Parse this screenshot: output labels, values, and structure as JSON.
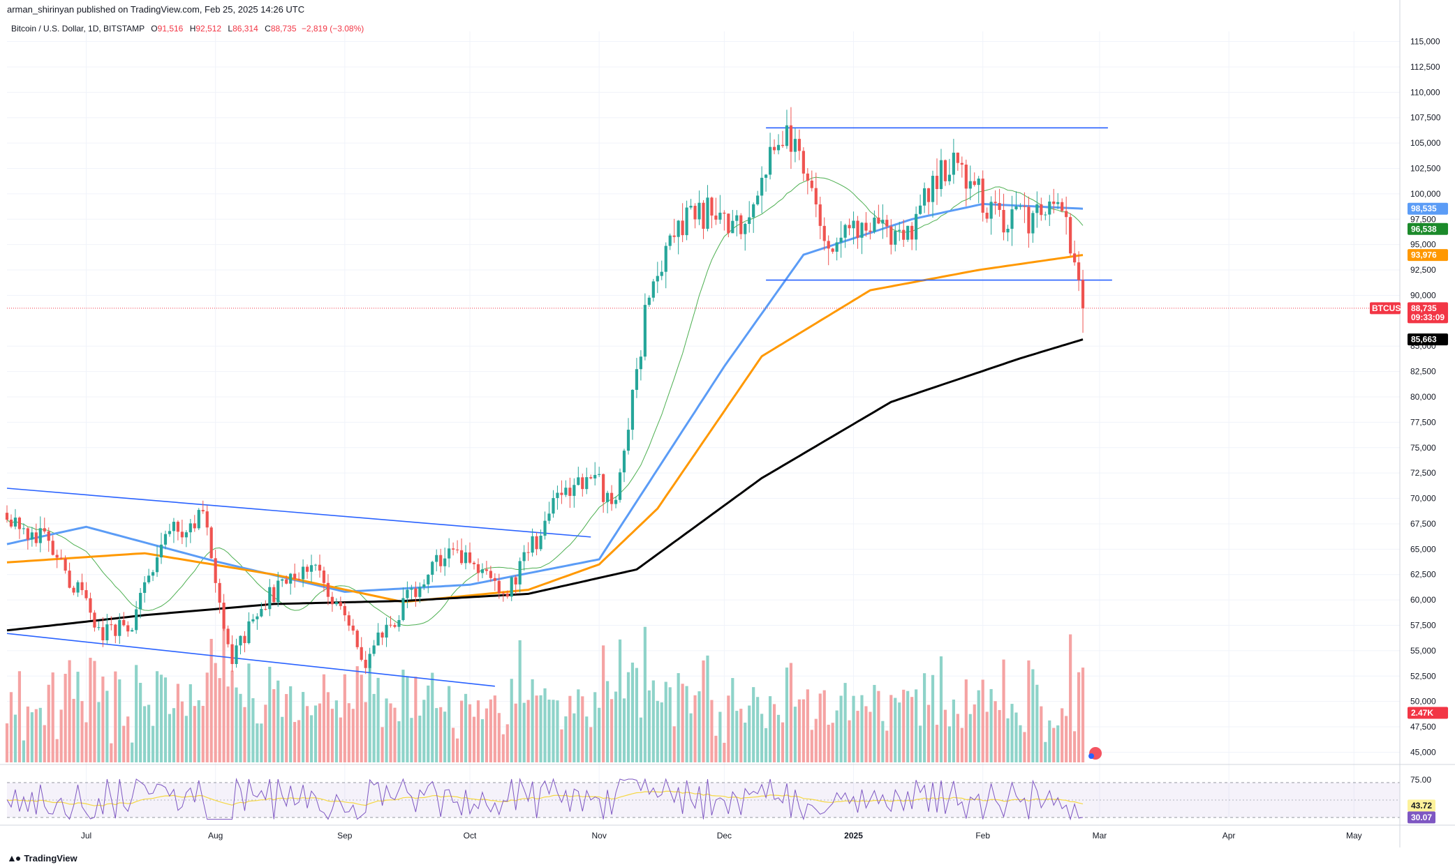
{
  "header": {
    "published": "arman_shirinyan published on TradingView.com, Feb 25, 2025 14:26 UTC",
    "symbol": "Bitcoin / U.S. Dollar, 1D, BITSTAMP",
    "o_label": "O",
    "o_value": "91,516",
    "h_label": "H",
    "h_value": "92,512",
    "l_label": "L",
    "l_value": "86,314",
    "c_label": "C",
    "c_value": "88,735",
    "change": "−2,819 (−3.08%)"
  },
  "footer": {
    "brand": "TradingView",
    "icon": "tradingview-logo-icon"
  },
  "price_tags": [
    {
      "value": "98,535",
      "color": "#5b9cf6",
      "label": ""
    },
    {
      "value": "96,538",
      "color": "#1b8a2a",
      "label": ""
    },
    {
      "value": "93,976",
      "color": "#ff9800",
      "label": ""
    },
    {
      "value": "88,735",
      "color": "#f23645",
      "label": "BTCUSD",
      "sub": "09:33:09"
    },
    {
      "value": "85,663",
      "color": "#000000",
      "label": ""
    },
    {
      "value": "2.47K",
      "color": "#f23645",
      "label": ""
    }
  ],
  "rsi_tags": [
    {
      "value": "43.72",
      "color": "#fdf29a",
      "text_color": "#131722"
    },
    {
      "value": "30.07",
      "color": "#7e57c2",
      "text_color": "#ffffff"
    }
  ],
  "chart_data": {
    "type": "candlestick",
    "y_ticks": [
      "115,000",
      "112,500",
      "110,000",
      "107,500",
      "105,000",
      "102,500",
      "100,000",
      "97,500",
      "95,000",
      "92,500",
      "90,000",
      "85,000",
      "82,500",
      "80,000",
      "77,500",
      "75,000",
      "72,500",
      "70,000",
      "67,500",
      "65,000",
      "62,500",
      "60,000",
      "57,500",
      "55,000",
      "52,500",
      "50,000",
      "47,500",
      "45,000"
    ],
    "ylim": [
      44000,
      116000
    ],
    "rsi_ticks": [
      "75.00"
    ],
    "x_ticks": [
      "Jul",
      "Aug",
      "Sep",
      "Oct",
      "Nov",
      "Dec",
      "2025",
      "Feb",
      "Mar",
      "Apr",
      "May"
    ],
    "x_start": "2024-06-12",
    "x_end": "2025-05-12",
    "last_date": "2025-02-25",
    "colors": {
      "up": "#26a69a",
      "down": "#ef5350",
      "vol_up": "#8ed3c9",
      "vol_down": "#f5a3a3",
      "ma20": "#4caf50",
      "ma50": "#5b9cf6",
      "ma100": "#ff9800",
      "ma200": "#000000",
      "trend": "#2962ff",
      "rsi": "#7e57c2",
      "rsi_ma": "#f5d742"
    },
    "close_anchors": [
      [
        "2024-06-12",
        68500
      ],
      [
        "2024-06-20",
        66200
      ],
      [
        "2024-06-28",
        61500
      ],
      [
        "2024-07-05",
        56500
      ],
      [
        "2024-07-12",
        58000
      ],
      [
        "2024-07-20",
        66000
      ],
      [
        "2024-07-29",
        68500
      ],
      [
        "2024-08-05",
        54000
      ],
      [
        "2024-08-12",
        59500
      ],
      [
        "2024-08-24",
        64000
      ],
      [
        "2024-09-06",
        54000
      ],
      [
        "2024-09-15",
        59500
      ],
      [
        "2024-09-27",
        65500
      ],
      [
        "2024-10-10",
        60500
      ],
      [
        "2024-10-20",
        68500
      ],
      [
        "2024-10-29",
        72500
      ],
      [
        "2024-11-05",
        69500
      ],
      [
        "2024-11-12",
        88000
      ],
      [
        "2024-11-22",
        98500
      ],
      [
        "2024-12-05",
        97500
      ],
      [
        "2024-12-16",
        106000
      ],
      [
        "2024-12-26",
        95500
      ],
      [
        "2025-01-07",
        97000
      ],
      [
        "2025-01-13",
        94500
      ],
      [
        "2025-01-20",
        102000
      ],
      [
        "2025-01-27",
        102500
      ],
      [
        "2025-02-04",
        97500
      ],
      [
        "2025-02-15",
        97500
      ],
      [
        "2025-02-20",
        98500
      ],
      [
        "2025-02-24",
        91500
      ],
      [
        "2025-02-25",
        88735
      ]
    ],
    "ma50_anchors": [
      [
        "2024-06-12",
        65500
      ],
      [
        "2024-07-01",
        67200
      ],
      [
        "2024-08-01",
        63800
      ],
      [
        "2024-09-01",
        60800
      ],
      [
        "2024-10-01",
        61500
      ],
      [
        "2024-11-01",
        64000
      ],
      [
        "2024-12-01",
        83000
      ],
      [
        "2024-12-20",
        94000
      ],
      [
        "2025-01-15",
        97500
      ],
      [
        "2025-02-01",
        99000
      ],
      [
        "2025-02-25",
        98535
      ]
    ],
    "ma100_anchors": [
      [
        "2024-06-12",
        63700
      ],
      [
        "2024-07-15",
        64600
      ],
      [
        "2024-08-15",
        62500
      ],
      [
        "2024-09-15",
        59800
      ],
      [
        "2024-10-15",
        61000
      ],
      [
        "2024-11-01",
        63500
      ],
      [
        "2024-11-15",
        69000
      ],
      [
        "2024-12-10",
        84000
      ],
      [
        "2025-01-05",
        90500
      ],
      [
        "2025-01-31",
        92500
      ],
      [
        "2025-02-25",
        93976
      ]
    ],
    "ma200_anchors": [
      [
        "2024-06-12",
        57000
      ],
      [
        "2024-07-15",
        58500
      ],
      [
        "2024-08-15",
        59600
      ],
      [
        "2024-09-15",
        59900
      ],
      [
        "2024-10-15",
        60600
      ],
      [
        "2024-11-10",
        63000
      ],
      [
        "2024-12-10",
        72000
      ],
      [
        "2025-01-10",
        79500
      ],
      [
        "2025-02-10",
        83800
      ],
      [
        "2025-02-25",
        85663
      ]
    ],
    "trendlines": [
      {
        "from": [
          "2024-06-12",
          71000
        ],
        "to": [
          "2024-10-30",
          66200
        ]
      },
      {
        "from": [
          "2024-06-12",
          56700
        ],
        "to": [
          "2024-10-07",
          51500
        ]
      },
      {
        "from": [
          "2024-12-11",
          106500
        ],
        "to": [
          "2025-03-03",
          106500
        ]
      },
      {
        "from": [
          "2024-12-11",
          91500
        ],
        "to": [
          "2025-03-04",
          91500
        ]
      }
    ]
  }
}
